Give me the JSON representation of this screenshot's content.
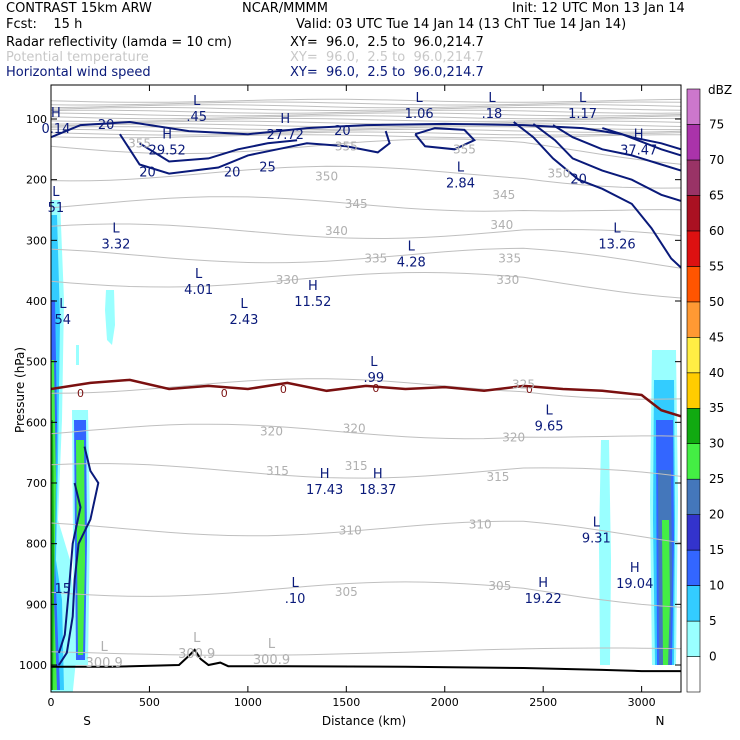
{
  "header": {
    "model": "CONTRAST 15km ARW",
    "institution": "NCAR/MMMM",
    "init": "Init: 12 UTC Mon 13 Jan 14",
    "fcst": "Fcst:    15 h",
    "valid": "Valid: 03 UTC Tue 14 Jan 14 (13 ChT Tue 14 Jan 14)",
    "fields": [
      {
        "name": "Radar reflectivity (lamda = 10 cm)",
        "xy": "XY=  96.0,  2.5 to  96.0,214.7",
        "color": "#000000"
      },
      {
        "name": "Potential temperature",
        "xy": "XY=  96.0,  2.5 to  96.0,214.7",
        "color": "#c8c8c8"
      },
      {
        "name": "Horizontal wind speed",
        "xy": "XY=  96.0,  2.5 to  96.0,214.7",
        "color": "#0a1a7a"
      }
    ]
  },
  "chart_data": {
    "type": "cross-section",
    "xlabel": "Distance (km)",
    "ylabel": "Pressure (hPa)",
    "xlim": [
      0,
      3200
    ],
    "ylim": [
      1040,
      60
    ],
    "x_ticks": [
      0,
      500,
      1000,
      1500,
      2000,
      2500,
      3000
    ],
    "y_ticks": [
      100,
      200,
      300,
      400,
      500,
      600,
      700,
      800,
      900,
      1000
    ],
    "end_labels": [
      "S",
      "N"
    ],
    "colorbar": {
      "unit": "dBZ",
      "levels": [
        0,
        5,
        10,
        15,
        20,
        25,
        30,
        35,
        40,
        45,
        50,
        55,
        60,
        65,
        70,
        75
      ],
      "colors": [
        "#ffffff",
        "#99ffff",
        "#33ccff",
        "#3366ff",
        "#3333cc",
        "#4477bb",
        "#44ee44",
        "#11aa11",
        "#ffcc00",
        "#ffee44",
        "#ff9933",
        "#ff5500",
        "#dd1111",
        "#aa1122",
        "#993366",
        "#aa33aa",
        "#cc77cc"
      ]
    },
    "theta_contours": [
      {
        "label": "355",
        "p": 145
      },
      {
        "label": "350",
        "p": 190
      },
      {
        "label": "345",
        "p": 240
      },
      {
        "label": "340",
        "p": 285
      },
      {
        "label": "335",
        "p": 325
      },
      {
        "label": "330",
        "p": 365
      },
      {
        "label": "325",
        "p": 540
      },
      {
        "label": "320",
        "p": 615
      },
      {
        "label": "315",
        "p": 680
      },
      {
        "label": "310",
        "p": 775
      },
      {
        "label": "305",
        "p": 875
      },
      {
        "label": "300.9",
        "p": 975
      }
    ],
    "freezing_level": {
      "label": "0",
      "points": [
        [
          0,
          545
        ],
        [
          200,
          535
        ],
        [
          400,
          530
        ],
        [
          600,
          545
        ],
        [
          800,
          540
        ],
        [
          1000,
          545
        ],
        [
          1200,
          535
        ],
        [
          1400,
          548
        ],
        [
          1600,
          540
        ],
        [
          1800,
          545
        ],
        [
          2000,
          542
        ],
        [
          2200,
          548
        ],
        [
          2400,
          540
        ],
        [
          2600,
          545
        ],
        [
          2800,
          548
        ],
        [
          3000,
          555
        ],
        [
          3100,
          580
        ],
        [
          3200,
          590
        ]
      ]
    },
    "wind_labels": [
      "20",
      "20",
      "25",
      "20",
      "20",
      "20",
      "15"
    ],
    "extrema": [
      {
        "type": "H",
        "value": "0.14",
        "x": 25,
        "p": 110
      },
      {
        "type": "L",
        "value": ".45",
        "x": 740,
        "p": 90
      },
      {
        "type": "L",
        "value": "1.06",
        "x": 1870,
        "p": 85
      },
      {
        "type": "L",
        "value": ".18",
        "x": 2240,
        "p": 85
      },
      {
        "type": "L",
        "value": "1.17",
        "x": 2700,
        "p": 85
      },
      {
        "type": "H",
        "value": "27.72",
        "x": 1190,
        "p": 120
      },
      {
        "type": "H",
        "value": "29.52",
        "x": 590,
        "p": 145
      },
      {
        "type": "H",
        "value": "37.47",
        "x": 2985,
        "p": 145
      },
      {
        "type": "L",
        "value": "2.84",
        "x": 2080,
        "p": 200
      },
      {
        "type": "L",
        "value": "51",
        "x": 25,
        "p": 240
      },
      {
        "type": "L",
        "value": "3.32",
        "x": 330,
        "p": 300
      },
      {
        "type": "L",
        "value": "13.26",
        "x": 2875,
        "p": 300
      },
      {
        "type": "L",
        "value": "4.28",
        "x": 1830,
        "p": 330
      },
      {
        "type": "L",
        "value": "4.01",
        "x": 750,
        "p": 375
      },
      {
        "type": "H",
        "value": "11.52",
        "x": 1330,
        "p": 395
      },
      {
        "type": "L",
        "value": "2.43",
        "x": 980,
        "p": 425
      },
      {
        "type": "L",
        "value": "54",
        "x": 60,
        "p": 425
      },
      {
        "type": "L",
        "value": ".99",
        "x": 1640,
        "p": 520
      },
      {
        "type": "L",
        "value": "9.65",
        "x": 2530,
        "p": 600
      },
      {
        "type": "H",
        "value": "17.43",
        "x": 1390,
        "p": 705
      },
      {
        "type": "H",
        "value": "18.37",
        "x": 1660,
        "p": 705
      },
      {
        "type": "L",
        "value": "9.31",
        "x": 2770,
        "p": 785
      },
      {
        "type": "H",
        "value": "19.04",
        "x": 2965,
        "p": 860
      },
      {
        "type": "H",
        "value": "19.22",
        "x": 2500,
        "p": 885
      },
      {
        "type": "L",
        "value": ".10",
        "x": 1240,
        "p": 885
      },
      {
        "type": "L",
        "value": "300.9",
        "x": 740,
        "p": 975
      },
      {
        "type": "L",
        "value": "300.9",
        "x": 1120,
        "p": 985
      },
      {
        "type": "L",
        "value": "300.9",
        "x": 270,
        "p": 990
      }
    ]
  }
}
